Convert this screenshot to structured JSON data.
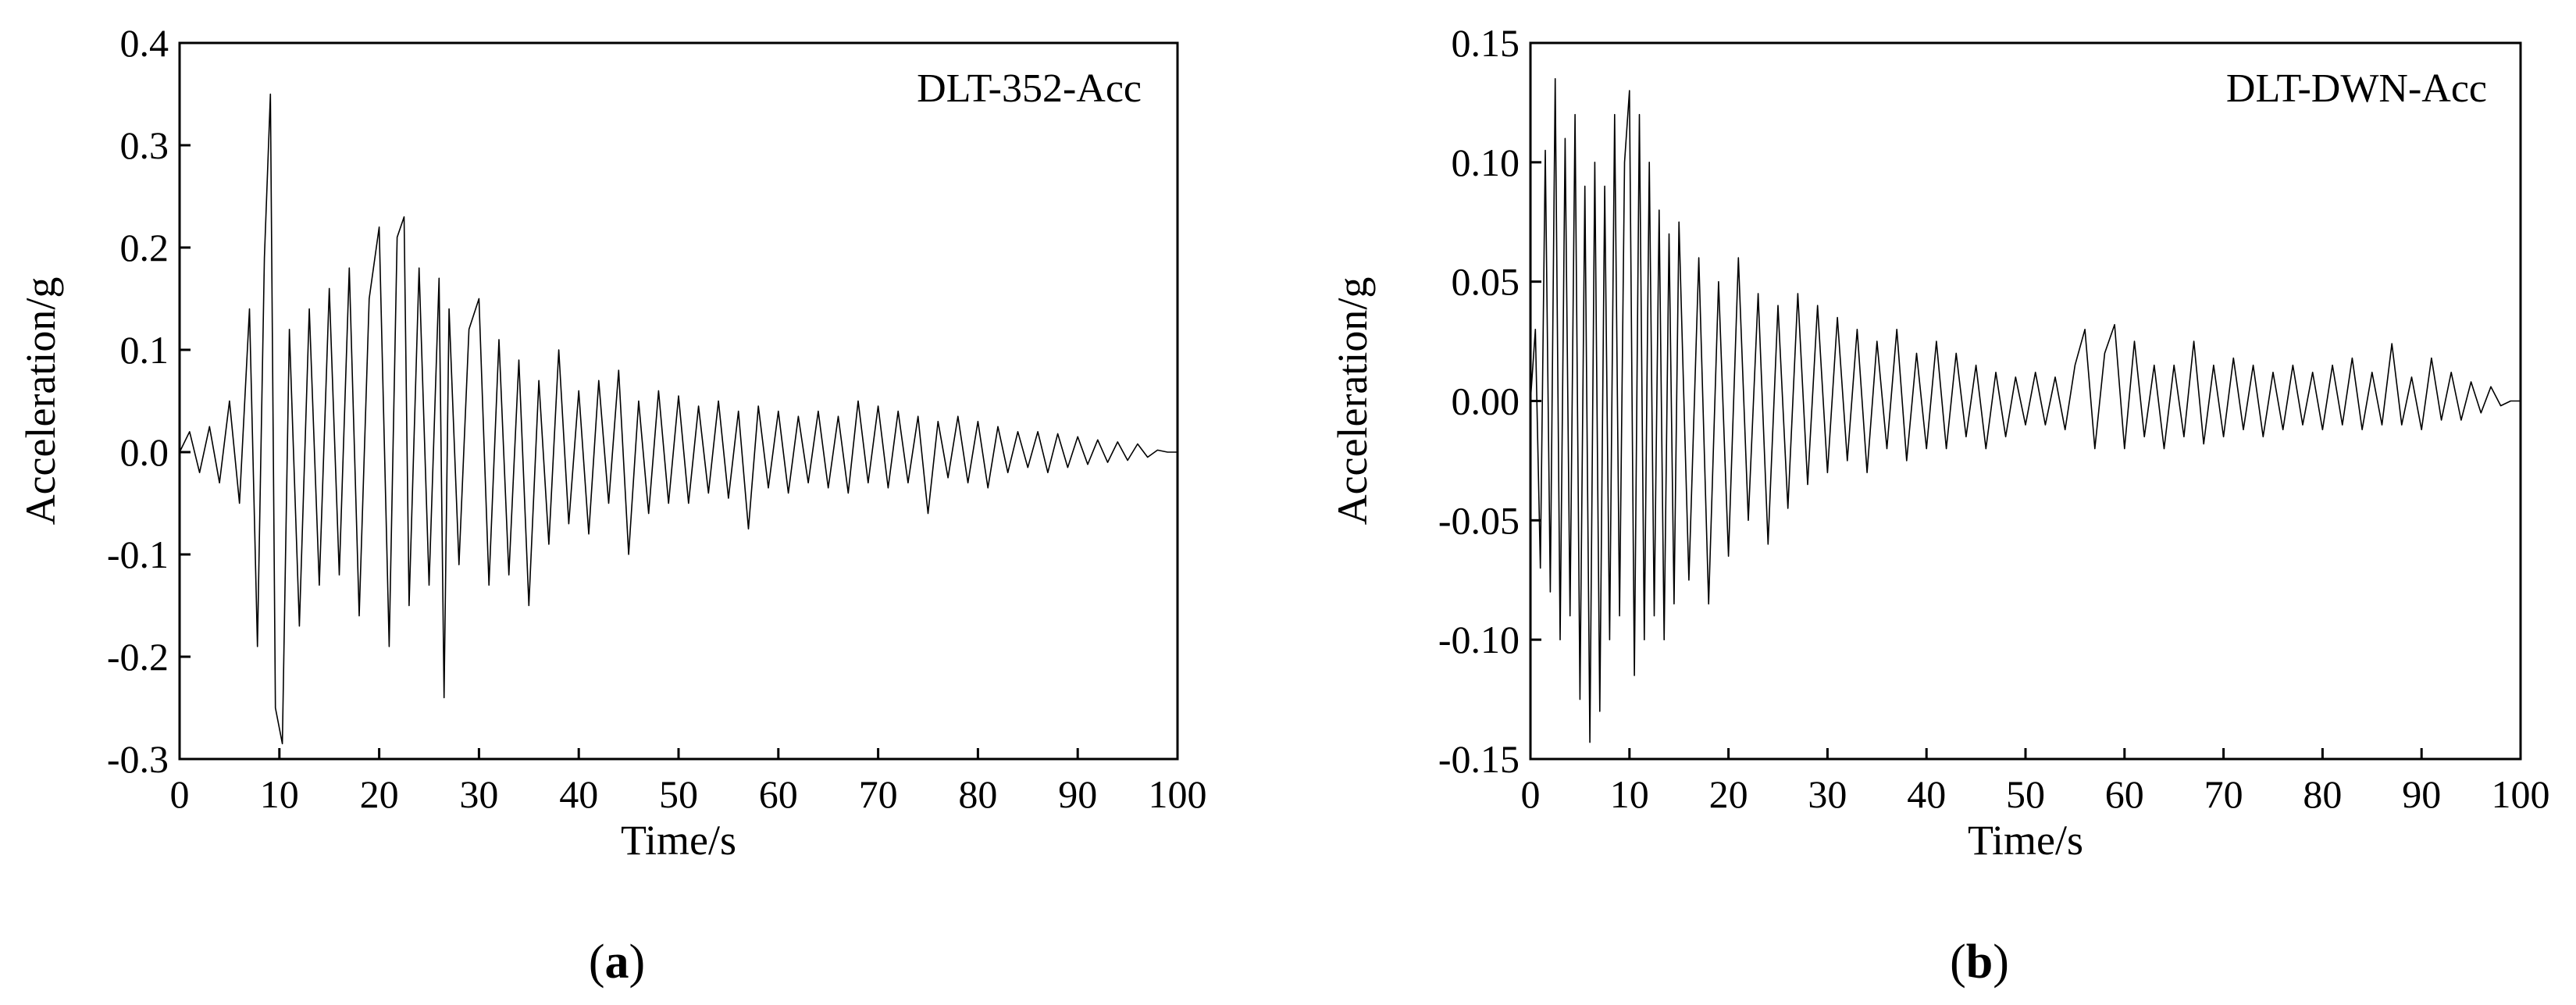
{
  "chart_data": [
    {
      "type": "line",
      "panel_label": "a",
      "legend": "DLT-352-Acc",
      "xlabel": "Time/s",
      "ylabel": "Acceleration/g",
      "xlim": [
        0,
        100
      ],
      "ylim": [
        -0.3,
        0.4
      ],
      "xticks": [
        0,
        10,
        20,
        30,
        40,
        50,
        60,
        70,
        80,
        90,
        100
      ],
      "xtick_labels": [
        "0",
        "10",
        "20",
        "30",
        "40",
        "50",
        "60",
        "70",
        "80",
        "90",
        "100"
      ],
      "yticks": [
        -0.3,
        -0.2,
        -0.1,
        0.0,
        0.1,
        0.2,
        0.3,
        0.4
      ],
      "ytick_labels": [
        "-0.3",
        "-0.2",
        "-0.1",
        "0.0",
        "0.1",
        "0.2",
        "0.3",
        "0.4"
      ],
      "grid": false,
      "legend_position": "top-right",
      "series": [
        {
          "x": [
            0,
            1,
            2,
            3,
            4,
            5,
            6,
            7,
            7.8,
            8.5,
            9.1,
            9.6,
            10.3,
            11,
            12,
            13,
            14,
            15,
            16,
            17,
            18,
            19,
            20,
            21,
            21.8,
            22.5,
            23,
            24,
            25,
            26,
            26.5,
            27,
            28,
            29,
            30,
            31,
            32,
            33,
            34,
            35,
            36,
            37,
            38,
            39,
            40,
            41,
            42,
            43,
            44,
            45,
            46,
            47,
            48,
            49,
            50,
            51,
            52,
            53,
            54,
            55,
            56,
            57,
            58,
            59,
            60,
            61,
            62,
            63,
            64,
            65,
            66,
            67,
            68,
            69,
            70,
            71,
            72,
            73,
            74,
            75,
            76,
            77,
            78,
            79,
            80,
            81,
            82,
            83,
            84,
            85,
            86,
            87,
            88,
            89,
            90,
            91,
            92,
            93,
            94,
            95,
            96,
            97,
            98,
            99,
            100
          ],
          "y": [
            0.0,
            0.02,
            -0.02,
            0.025,
            -0.03,
            0.05,
            -0.05,
            0.14,
            -0.19,
            0.19,
            0.35,
            -0.25,
            -0.285,
            0.12,
            -0.17,
            0.14,
            -0.13,
            0.16,
            -0.12,
            0.18,
            -0.16,
            0.15,
            0.22,
            -0.19,
            0.21,
            0.23,
            -0.15,
            0.18,
            -0.13,
            0.17,
            -0.24,
            0.14,
            -0.11,
            0.12,
            0.15,
            -0.13,
            0.11,
            -0.12,
            0.09,
            -0.15,
            0.07,
            -0.09,
            0.1,
            -0.07,
            0.06,
            -0.08,
            0.07,
            -0.05,
            0.08,
            -0.1,
            0.05,
            -0.06,
            0.06,
            -0.05,
            0.055,
            -0.05,
            0.045,
            -0.04,
            0.05,
            -0.045,
            0.04,
            -0.075,
            0.045,
            -0.035,
            0.04,
            -0.04,
            0.035,
            -0.03,
            0.04,
            -0.035,
            0.035,
            -0.04,
            0.05,
            -0.03,
            0.045,
            -0.035,
            0.04,
            -0.03,
            0.035,
            -0.06,
            0.03,
            -0.025,
            0.035,
            -0.03,
            0.03,
            -0.035,
            0.025,
            -0.02,
            0.02,
            -0.015,
            0.02,
            -0.02,
            0.018,
            -0.015,
            0.015,
            -0.012,
            0.012,
            -0.01,
            0.01,
            -0.008,
            0.008,
            -0.005,
            0.002,
            0.0,
            0.0
          ]
        }
      ]
    },
    {
      "type": "line",
      "panel_label": "b",
      "legend": "DLT-DWN-Acc",
      "xlabel": "Time/s",
      "ylabel": "Acceleration/g",
      "xlim": [
        0,
        100
      ],
      "ylim": [
        -0.15,
        0.15
      ],
      "xticks": [
        0,
        10,
        20,
        30,
        40,
        50,
        60,
        70,
        80,
        90,
        100
      ],
      "xtick_labels": [
        "0",
        "10",
        "20",
        "30",
        "40",
        "50",
        "60",
        "70",
        "80",
        "90",
        "100"
      ],
      "yticks": [
        -0.15,
        -0.1,
        -0.05,
        0.0,
        0.05,
        0.1,
        0.15
      ],
      "ytick_labels": [
        "-0.15",
        "-0.10",
        "-0.05",
        "0.00",
        "0.05",
        "0.10",
        "0.15"
      ],
      "grid": false,
      "legend_position": "top-right",
      "series": [
        {
          "x": [
            0,
            0.5,
            1,
            1.5,
            2,
            2.5,
            3,
            3.5,
            4,
            4.5,
            5,
            5.5,
            6,
            6.5,
            7,
            7.5,
            8,
            8.5,
            9,
            9.5,
            10,
            10.5,
            11,
            11.5,
            12,
            12.5,
            13,
            13.5,
            14,
            14.5,
            15,
            16,
            17,
            18,
            19,
            20,
            21,
            22,
            23,
            24,
            25,
            26,
            27,
            28,
            29,
            30,
            31,
            32,
            33,
            34,
            35,
            36,
            37,
            38,
            39,
            40,
            41,
            42,
            43,
            44,
            45,
            46,
            47,
            48,
            49,
            50,
            51,
            52,
            53,
            54,
            55,
            56,
            57,
            58,
            59,
            60,
            61,
            62,
            63,
            64,
            65,
            66,
            67,
            68,
            69,
            70,
            71,
            72,
            73,
            74,
            75,
            76,
            77,
            78,
            79,
            80,
            81,
            82,
            83,
            84,
            85,
            86,
            87,
            88,
            89,
            90,
            91,
            92,
            93,
            94,
            95,
            96,
            97,
            98,
            99,
            100
          ],
          "y": [
            0.0,
            0.03,
            -0.07,
            0.105,
            -0.08,
            0.135,
            -0.1,
            0.11,
            -0.09,
            0.12,
            -0.125,
            0.09,
            -0.143,
            0.1,
            -0.13,
            0.09,
            -0.1,
            0.12,
            -0.09,
            0.1,
            0.13,
            -0.115,
            0.12,
            -0.1,
            0.1,
            -0.09,
            0.08,
            -0.1,
            0.07,
            -0.085,
            0.075,
            -0.075,
            0.06,
            -0.085,
            0.05,
            -0.065,
            0.06,
            -0.05,
            0.045,
            -0.06,
            0.04,
            -0.045,
            0.045,
            -0.035,
            0.04,
            -0.03,
            0.035,
            -0.025,
            0.03,
            -0.03,
            0.025,
            -0.02,
            0.03,
            -0.025,
            0.02,
            -0.02,
            0.025,
            -0.02,
            0.02,
            -0.015,
            0.015,
            -0.02,
            0.012,
            -0.015,
            0.01,
            -0.01,
            0.012,
            -0.01,
            0.01,
            -0.012,
            0.015,
            0.03,
            -0.02,
            0.02,
            0.032,
            -0.02,
            0.025,
            -0.015,
            0.015,
            -0.02,
            0.015,
            -0.015,
            0.025,
            -0.018,
            0.015,
            -0.015,
            0.018,
            -0.012,
            0.015,
            -0.015,
            0.012,
            -0.012,
            0.015,
            -0.01,
            0.012,
            -0.012,
            0.015,
            -0.01,
            0.018,
            -0.012,
            0.012,
            -0.01,
            0.024,
            -0.01,
            0.01,
            -0.012,
            0.018,
            -0.008,
            0.012,
            -0.008,
            0.008,
            -0.005,
            0.006,
            -0.002,
            0.0,
            0.0
          ]
        }
      ]
    }
  ]
}
